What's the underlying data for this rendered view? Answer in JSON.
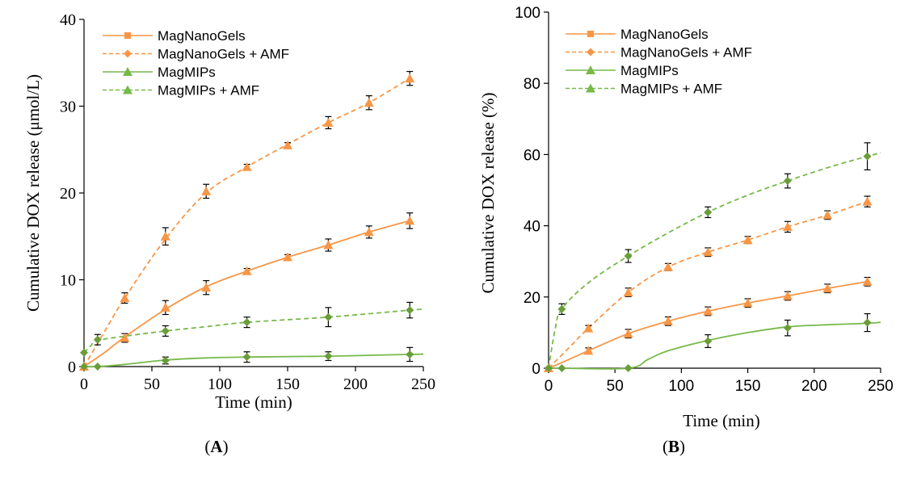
{
  "colors": {
    "orange": "#f79646",
    "green": "#77b94a",
    "green_marker": "#6a9d3a",
    "errorbar": "#000000"
  },
  "legend": [
    {
      "label": "MagNanoGels",
      "color": "orange",
      "dashed": false,
      "marker": "square"
    },
    {
      "label": "MagNanoGels + AMF",
      "color": "orange",
      "dashed": true,
      "marker": "diamond"
    },
    {
      "label": "MagMIPs",
      "color": "green",
      "dashed": false,
      "marker": "triangle"
    },
    {
      "label": "MagMIPs + AMF",
      "color": "green",
      "dashed": true,
      "marker": "triangle"
    }
  ],
  "panel_labels": {
    "a_open": "(",
    "a": "A",
    "a_close": ")",
    "b_open": "(",
    "b": "B",
    "b_close": ")"
  },
  "chart_data": [
    {
      "type": "line",
      "xlabel": "Time (min)",
      "ylabel": "Cumulative DOX release (μmol/L)",
      "xlim": [
        0,
        250
      ],
      "ylim": [
        0,
        40
      ],
      "xticks": [
        0,
        50,
        100,
        150,
        200,
        250
      ],
      "yticks": [
        0,
        10,
        20,
        30,
        40
      ],
      "legend_position": "top-left",
      "series": [
        {
          "name": "MagNanoGels",
          "color": "orange",
          "dashed": false,
          "marker": "triangle",
          "points": [
            [
              0,
              0
            ],
            [
              30,
              3.3
            ],
            [
              60,
              6.8
            ],
            [
              90,
              9.1
            ],
            [
              120,
              11.0
            ],
            [
              150,
              12.6
            ],
            [
              180,
              14.0
            ],
            [
              210,
              15.5
            ],
            [
              240,
              16.8
            ]
          ],
          "err": [
            0,
            0.5,
            0.8,
            0.8,
            0.3,
            0.3,
            0.7,
            0.7,
            0.9
          ],
          "curve": [
            [
              0,
              0
            ],
            [
              15,
              1.6
            ],
            [
              30,
              3.4
            ],
            [
              60,
              6.6
            ],
            [
              90,
              9.2
            ],
            [
              120,
              11.0
            ],
            [
              150,
              12.6
            ],
            [
              180,
              14.0
            ],
            [
              210,
              15.5
            ],
            [
              240,
              16.8
            ]
          ]
        },
        {
          "name": "MagNanoGels + AMF",
          "color": "orange",
          "dashed": true,
          "marker": "triangle",
          "points": [
            [
              0,
              0
            ],
            [
              30,
              7.9
            ],
            [
              60,
              15.0
            ],
            [
              90,
              20.2
            ],
            [
              120,
              23.0
            ],
            [
              150,
              25.5
            ],
            [
              180,
              28.1
            ],
            [
              210,
              30.4
            ],
            [
              240,
              33.2
            ]
          ],
          "err": [
            0,
            0.6,
            1.0,
            0.8,
            0.3,
            0.3,
            0.7,
            0.8,
            0.8
          ],
          "curve": [
            [
              0,
              0
            ],
            [
              15,
              4.0
            ],
            [
              30,
              7.9
            ],
            [
              60,
              14.7
            ],
            [
              90,
              20.0
            ],
            [
              120,
              23.0
            ],
            [
              150,
              25.6
            ],
            [
              180,
              28.1
            ],
            [
              210,
              30.4
            ],
            [
              240,
              33.2
            ]
          ]
        },
        {
          "name": "MagMIPs",
          "color": "green",
          "dashed": false,
          "marker": "diamond",
          "points": [
            [
              0,
              0
            ],
            [
              10,
              0
            ],
            [
              60,
              0.7
            ],
            [
              120,
              1.1
            ],
            [
              180,
              1.2
            ],
            [
              240,
              1.4
            ]
          ],
          "err": [
            0,
            0,
            0.4,
            0.6,
            0.5,
            0.8
          ],
          "curve": [
            [
              0,
              0
            ],
            [
              10,
              0
            ],
            [
              30,
              0.25
            ],
            [
              60,
              0.75
            ],
            [
              90,
              1.0
            ],
            [
              120,
              1.1
            ],
            [
              180,
              1.2
            ],
            [
              240,
              1.4
            ],
            [
              250,
              1.45
            ]
          ]
        },
        {
          "name": "MagMIPs + AMF",
          "color": "green",
          "dashed": true,
          "marker": "diamond",
          "points": [
            [
              0,
              1.6
            ],
            [
              10,
              3.1
            ],
            [
              60,
              4.1
            ],
            [
              120,
              5.1
            ],
            [
              180,
              5.7
            ],
            [
              240,
              6.5
            ]
          ],
          "err": [
            0,
            0.6,
            0.6,
            0.6,
            1.1,
            0.9
          ],
          "curve": [
            [
              0,
              1.6
            ],
            [
              5,
              2.4
            ],
            [
              10,
              3.0
            ],
            [
              30,
              3.5
            ],
            [
              60,
              4.1
            ],
            [
              90,
              4.6
            ],
            [
              120,
              5.1
            ],
            [
              180,
              5.7
            ],
            [
              240,
              6.5
            ],
            [
              250,
              6.6
            ]
          ]
        }
      ]
    },
    {
      "type": "line",
      "xlabel": "Time (min)",
      "ylabel": "Cumulative DOX release (%)",
      "xlim": [
        0,
        250
      ],
      "ylim": [
        0,
        100
      ],
      "xticks": [
        0,
        50,
        100,
        150,
        200,
        250
      ],
      "yticks": [
        0,
        20,
        40,
        60,
        80,
        100
      ],
      "legend_position": "top-left",
      "series": [
        {
          "name": "MagNanoGels",
          "color": "orange",
          "dashed": false,
          "marker": "triangle",
          "points": [
            [
              0,
              0
            ],
            [
              30,
              4.9
            ],
            [
              60,
              9.7
            ],
            [
              90,
              13.2
            ],
            [
              120,
              16.0
            ],
            [
              150,
              18.3
            ],
            [
              180,
              20.3
            ],
            [
              210,
              22.4
            ],
            [
              240,
              24.3
            ]
          ],
          "err": [
            0,
            0.8,
            1.2,
            1.2,
            1.2,
            1.2,
            1.2,
            1.2,
            1.2
          ],
          "curve": [
            [
              0,
              0
            ],
            [
              15,
              2.4
            ],
            [
              30,
              4.9
            ],
            [
              60,
              9.7
            ],
            [
              90,
              13.2
            ],
            [
              120,
              16.0
            ],
            [
              150,
              18.3
            ],
            [
              180,
              20.3
            ],
            [
              210,
              22.4
            ],
            [
              240,
              24.3
            ]
          ]
        },
        {
          "name": "MagNanoGels + AMF",
          "color": "orange",
          "dashed": true,
          "marker": "triangle",
          "points": [
            [
              0,
              0
            ],
            [
              30,
              11.2
            ],
            [
              60,
              21.3
            ],
            [
              90,
              28.4
            ],
            [
              120,
              32.6
            ],
            [
              150,
              36.0
            ],
            [
              180,
              39.7
            ],
            [
              210,
              43.0
            ],
            [
              240,
              46.8
            ]
          ],
          "err": [
            0,
            0.8,
            1.2,
            1.0,
            1.2,
            1.0,
            1.5,
            1.2,
            1.5
          ],
          "curve": [
            [
              0,
              0
            ],
            [
              15,
              5.6
            ],
            [
              30,
              11.2
            ],
            [
              60,
              21.3
            ],
            [
              90,
              28.4
            ],
            [
              120,
              32.6
            ],
            [
              150,
              36.0
            ],
            [
              180,
              39.7
            ],
            [
              210,
              43.0
            ],
            [
              240,
              46.8
            ]
          ]
        },
        {
          "name": "MagMIPs",
          "color": "green",
          "dashed": false,
          "marker": "diamond",
          "points": [
            [
              0,
              0
            ],
            [
              10,
              0
            ],
            [
              60,
              0
            ],
            [
              120,
              7.6
            ],
            [
              180,
              11.3
            ],
            [
              240,
              12.8
            ]
          ],
          "err": [
            0,
            0,
            0,
            1.8,
            2.2,
            2.5
          ],
          "curve": [
            [
              0,
              0
            ],
            [
              10,
              0
            ],
            [
              60,
              0
            ],
            [
              75,
              2.5
            ],
            [
              90,
              4.9
            ],
            [
              120,
              7.8
            ],
            [
              150,
              10.0
            ],
            [
              180,
              11.6
            ],
            [
              210,
              12.2
            ],
            [
              240,
              12.6
            ],
            [
              250,
              12.9
            ]
          ]
        },
        {
          "name": "MagMIPs + AMF",
          "color": "green",
          "dashed": true,
          "marker": "diamond",
          "points": [
            [
              0,
              0
            ],
            [
              10,
              16.6
            ],
            [
              60,
              31.5
            ],
            [
              120,
              43.8
            ],
            [
              180,
              52.6
            ],
            [
              240,
              59.5
            ]
          ],
          "err": [
            0,
            1.5,
            1.8,
            1.5,
            2.0,
            3.8
          ],
          "curve": [
            [
              0,
              0
            ],
            [
              5,
              11.0
            ],
            [
              10,
              16.6
            ],
            [
              30,
              24.0
            ],
            [
              60,
              31.5
            ],
            [
              90,
              38.0
            ],
            [
              120,
              43.8
            ],
            [
              150,
              48.6
            ],
            [
              180,
              52.6
            ],
            [
              210,
              56.3
            ],
            [
              240,
              59.5
            ],
            [
              250,
              60.5
            ]
          ]
        }
      ]
    }
  ]
}
